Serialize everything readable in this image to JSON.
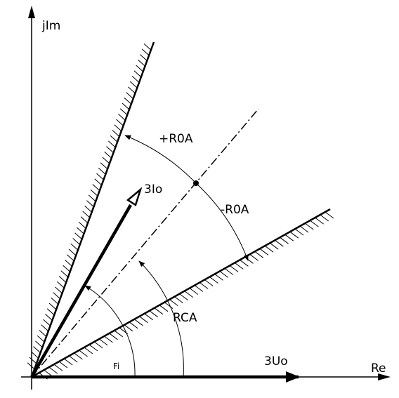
{
  "diagram": {
    "labels": {
      "imag_axis": "jIm",
      "real_axis": "Re",
      "plus_roa": "+R0A",
      "minus_roa": "-R0A",
      "current_vector": "3Io",
      "voltage_vector": "3Uo",
      "rca": "RCA",
      "fi": "Fi"
    },
    "colors": {
      "ink": "#000000",
      "background": "#ffffff"
    }
  }
}
